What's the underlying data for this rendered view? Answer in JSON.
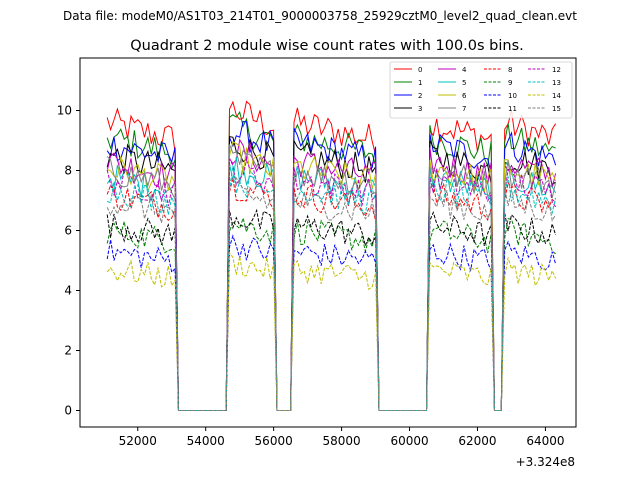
{
  "suptitle": "Data file: modeM0/AS1T03_214T01_9000003758_25929cztM0_level2_quad_clean.evt",
  "chart_data": {
    "type": "line",
    "title": "Quadrant 2 module wise count rates with 100.0s bins.",
    "xlabel": "",
    "ylabel": "",
    "x_offset_label": "+3.324e8",
    "xlim": [
      50300,
      64900
    ],
    "ylim": [
      -0.55,
      11.75
    ],
    "x_ticks": [
      52000,
      54000,
      56000,
      58000,
      60000,
      62000,
      64000
    ],
    "x_tick_labels": [
      "52000",
      "54000",
      "56000",
      "58000",
      "60000",
      "62000",
      "64000"
    ],
    "y_ticks": [
      0,
      2,
      4,
      6,
      8,
      10
    ],
    "y_tick_labels": [
      "0",
      "2",
      "4",
      "6",
      "8",
      "10"
    ],
    "grid": false,
    "legend_position": "top-right",
    "legend_columns": 4,
    "segments": [
      [
        51100,
        53100
      ],
      [
        54700,
        56000
      ],
      [
        56600,
        59000
      ],
      [
        60600,
        62400
      ],
      [
        62800,
        64300
      ]
    ],
    "series": [
      {
        "name": "0",
        "color": "#ff0000",
        "dash": "solid",
        "level": 9.6
      },
      {
        "name": "1",
        "color": "#008000",
        "dash": "solid",
        "level": 9.1
      },
      {
        "name": "2",
        "color": "#0000ff",
        "dash": "solid",
        "level": 8.9
      },
      {
        "name": "3",
        "color": "#000000",
        "dash": "solid",
        "level": 8.5
      },
      {
        "name": "4",
        "color": "#bf00bf",
        "dash": "solid",
        "level": 8.3
      },
      {
        "name": "5",
        "color": "#00bfbf",
        "dash": "solid",
        "level": 7.8
      },
      {
        "name": "6",
        "color": "#bfbf00",
        "dash": "solid",
        "level": 8.1
      },
      {
        "name": "7",
        "color": "#808080",
        "dash": "solid",
        "level": 8.0
      },
      {
        "name": "8",
        "color": "#ff0000",
        "dash": "dashed",
        "level": 7.2
      },
      {
        "name": "9",
        "color": "#008000",
        "dash": "dashed",
        "level": 6.0
      },
      {
        "name": "10",
        "color": "#0000ff",
        "dash": "dashed",
        "level": 5.3
      },
      {
        "name": "11",
        "color": "#000000",
        "dash": "dashed",
        "level": 6.2
      },
      {
        "name": "12",
        "color": "#bf00bf",
        "dash": "dashed",
        "level": 7.7
      },
      {
        "name": "13",
        "color": "#00bfbf",
        "dash": "dashed",
        "level": 7.4
      },
      {
        "name": "14",
        "color": "#bfbf00",
        "dash": "dashed",
        "level": 4.7
      },
      {
        "name": "15",
        "color": "#808080",
        "dash": "dashed",
        "level": 7.0
      }
    ]
  }
}
